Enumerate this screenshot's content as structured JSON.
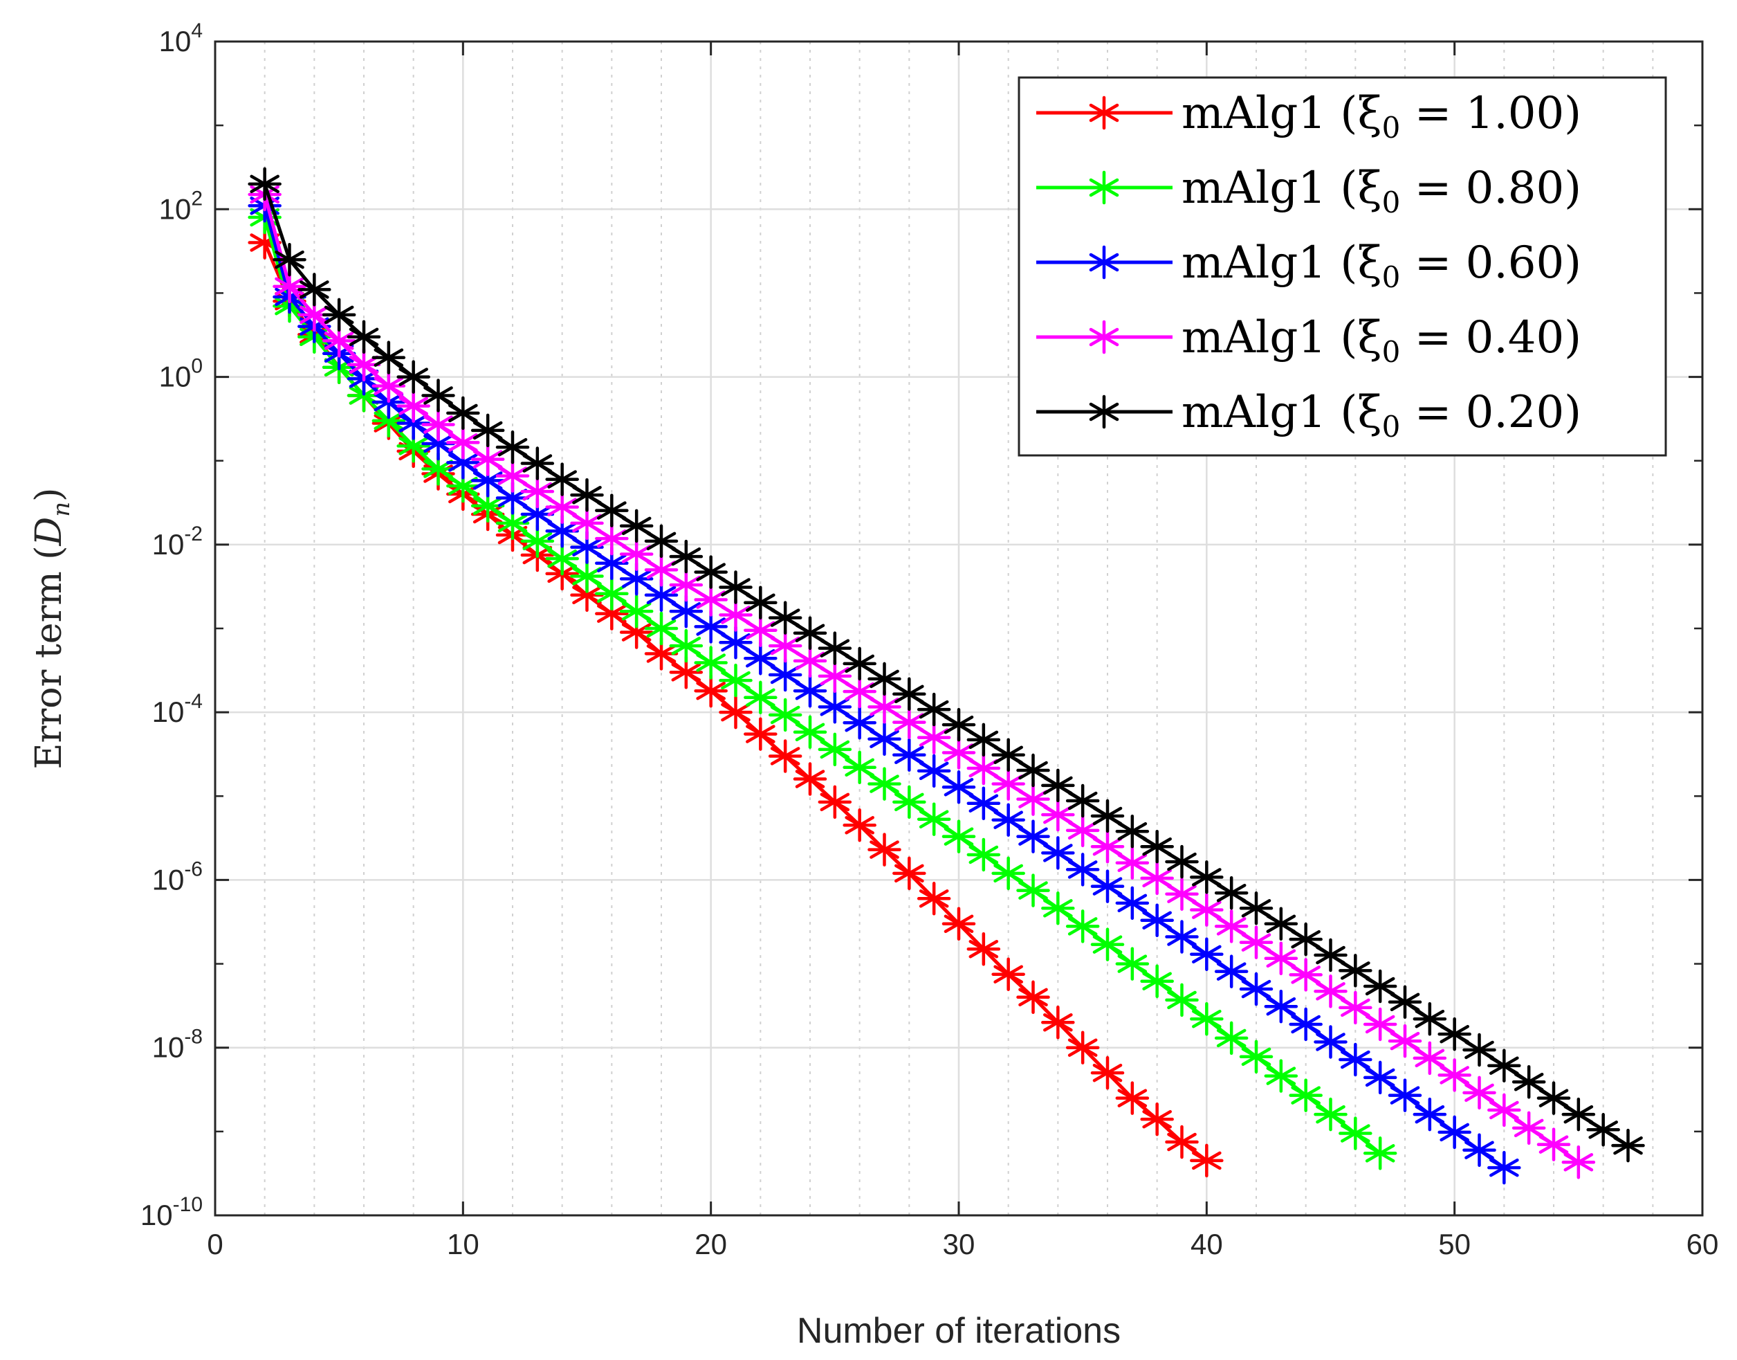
{
  "chart_data": {
    "type": "line",
    "title": "",
    "xlabel": "Number of iterations",
    "ylabel": "Error term (D_n)",
    "ylabel_text": "Error term",
    "ylabel_symbol_main": "D",
    "ylabel_symbol_sub": "n",
    "xlim": [
      0,
      60
    ],
    "ylim": [
      1e-10,
      10000.0
    ],
    "yscale": "log",
    "grid": true,
    "minor_grid_x": true,
    "legend_position": "top-right",
    "x_ticks": [
      "0",
      "10",
      "20",
      "30",
      "40",
      "50",
      "60"
    ],
    "y_ticks": [
      {
        "base": "10",
        "exp": "-10"
      },
      {
        "base": "10",
        "exp": "-8"
      },
      {
        "base": "10",
        "exp": "-6"
      },
      {
        "base": "10",
        "exp": "-4"
      },
      {
        "base": "10",
        "exp": "-2"
      },
      {
        "base": "10",
        "exp": "0"
      },
      {
        "base": "10",
        "exp": "2"
      },
      {
        "base": "10",
        "exp": "4"
      }
    ],
    "series": [
      {
        "name": "mAlg1 (ξ0 = 1.00)",
        "label_main": "mAlg1 (ξ",
        "label_sub": "0",
        "label_tail": " = 1.00)",
        "color": "#ff0000",
        "x": [
          2,
          3,
          4,
          5,
          6,
          7,
          8,
          9,
          10,
          11,
          12,
          13,
          14,
          15,
          16,
          17,
          18,
          19,
          20,
          21,
          22,
          23,
          24,
          25,
          26,
          27,
          28,
          29,
          30,
          31,
          32,
          33,
          34,
          35,
          36,
          37,
          38,
          39,
          40
        ],
        "y": [
          40,
          8,
          3.2,
          1.3,
          0.6,
          0.28,
          0.13,
          0.07,
          0.04,
          0.023,
          0.013,
          0.0075,
          0.0045,
          0.0025,
          0.0015,
          0.0009,
          0.0005,
          0.0003,
          0.00018,
          0.0001,
          5.5e-05,
          3e-05,
          1.6e-05,
          8.5e-06,
          4.5e-06,
          2.3e-06,
          1.2e-06,
          6e-07,
          3e-07,
          1.5e-07,
          7.5e-08,
          4e-08,
          2e-08,
          1e-08,
          5e-09,
          2.5e-09,
          1.4e-09,
          7.5e-10,
          4.5e-10
        ]
      },
      {
        "name": "mAlg1 (ξ0 = 0.80)",
        "label_main": "mAlg1 (ξ",
        "label_sub": "0",
        "label_tail": " = 0.80)",
        "color": "#00ff00",
        "x": [
          2,
          3,
          4,
          5,
          6,
          7,
          8,
          9,
          10,
          11,
          12,
          13,
          14,
          15,
          16,
          17,
          18,
          19,
          20,
          21,
          22,
          23,
          24,
          25,
          26,
          27,
          28,
          29,
          30,
          31,
          32,
          33,
          34,
          35,
          36,
          37,
          38,
          39,
          40,
          41,
          42,
          43,
          44,
          45,
          46,
          47
        ],
        "y": [
          80,
          7,
          3,
          1.3,
          0.6,
          0.3,
          0.15,
          0.08,
          0.05,
          0.029,
          0.018,
          0.011,
          0.0068,
          0.0042,
          0.0026,
          0.0016,
          0.001,
          0.00062,
          0.00039,
          0.00024,
          0.00015,
          9.3e-05,
          5.8e-05,
          3.6e-05,
          2.2e-05,
          1.4e-05,
          8.5e-06,
          5.3e-06,
          3.3e-06,
          2e-06,
          1.2e-06,
          7.5e-07,
          4.6e-07,
          2.8e-07,
          1.7e-07,
          1e-07,
          6.2e-08,
          3.7e-08,
          2.2e-08,
          1.3e-08,
          7.8e-09,
          4.6e-09,
          2.7e-09,
          1.6e-09,
          9.5e-10,
          5.5e-10
        ]
      },
      {
        "name": "mAlg1 (ξ0 = 0.60)",
        "label_main": "mAlg1 (ξ",
        "label_sub": "0",
        "label_tail": " = 0.60)",
        "color": "#0000ff",
        "x": [
          2,
          3,
          4,
          5,
          6,
          7,
          8,
          9,
          10,
          11,
          12,
          13,
          14,
          15,
          16,
          17,
          18,
          19,
          20,
          21,
          22,
          23,
          24,
          25,
          26,
          27,
          28,
          29,
          30,
          31,
          32,
          33,
          34,
          35,
          36,
          37,
          38,
          39,
          40,
          41,
          42,
          43,
          44,
          45,
          46,
          47,
          48,
          49,
          50,
          51,
          52
        ],
        "y": [
          110,
          9,
          4,
          1.9,
          0.95,
          0.5,
          0.28,
          0.16,
          0.095,
          0.058,
          0.036,
          0.023,
          0.0145,
          0.0093,
          0.006,
          0.0039,
          0.0025,
          0.0016,
          0.00105,
          0.00068,
          0.00044,
          0.00028,
          0.00018,
          0.000116,
          7.5e-05,
          4.8e-05,
          3.1e-05,
          2e-05,
          1.28e-05,
          8.2e-06,
          5.2e-06,
          3.3e-06,
          2.1e-06,
          1.33e-06,
          8.4e-07,
          5.3e-07,
          3.3e-07,
          2.1e-07,
          1.3e-07,
          8.1e-08,
          5e-08,
          3.1e-08,
          1.9e-08,
          1.17e-08,
          7.2e-09,
          4.4e-09,
          2.7e-09,
          1.6e-09,
          9.8e-10,
          6e-10,
          3.7e-10
        ]
      },
      {
        "name": "mAlg1 (ξ0 = 0.40)",
        "label_main": "mAlg1 (ξ",
        "label_sub": "0",
        "label_tail": " = 0.40)",
        "color": "#ff00ff",
        "x": [
          2,
          3,
          4,
          5,
          6,
          7,
          8,
          9,
          10,
          11,
          12,
          13,
          14,
          15,
          16,
          17,
          18,
          19,
          20,
          21,
          22,
          23,
          24,
          25,
          26,
          27,
          28,
          29,
          30,
          31,
          32,
          33,
          34,
          35,
          36,
          37,
          38,
          39,
          40,
          41,
          42,
          43,
          44,
          45,
          46,
          47,
          48,
          49,
          50,
          51,
          52,
          53,
          54,
          55
        ],
        "y": [
          150,
          12,
          5.5,
          2.7,
          1.4,
          0.78,
          0.45,
          0.27,
          0.165,
          0.104,
          0.066,
          0.043,
          0.028,
          0.018,
          0.0118,
          0.0077,
          0.005,
          0.0033,
          0.0022,
          0.00145,
          0.00095,
          0.00062,
          0.00041,
          0.00027,
          0.000177,
          0.000116,
          7.6e-05,
          5e-05,
          3.3e-05,
          2.15e-05,
          1.4e-05,
          9.2e-06,
          6e-06,
          3.9e-06,
          2.5e-06,
          1.6e-06,
          1.05e-06,
          6.8e-07,
          4.4e-07,
          2.8e-07,
          1.8e-07,
          1.16e-07,
          7.4e-08,
          4.7e-08,
          3e-08,
          1.9e-08,
          1.2e-08,
          7.5e-09,
          4.7e-09,
          2.9e-09,
          1.8e-09,
          1.1e-09,
          7e-10,
          4.3e-10
        ]
      },
      {
        "name": "mAlg1 (ξ0 = 0.20)",
        "label_main": "mAlg1 (ξ",
        "label_sub": "0",
        "label_tail": " = 0.20)",
        "color": "#000000",
        "x": [
          2,
          3,
          4,
          5,
          6,
          7,
          8,
          9,
          10,
          11,
          12,
          13,
          14,
          15,
          16,
          17,
          18,
          19,
          20,
          21,
          22,
          23,
          24,
          25,
          26,
          27,
          28,
          29,
          30,
          31,
          32,
          33,
          34,
          35,
          36,
          37,
          38,
          39,
          40,
          41,
          42,
          43,
          44,
          45,
          46,
          47,
          48,
          49,
          50,
          51,
          52,
          53,
          54,
          55,
          56,
          57
        ],
        "y": [
          200,
          25,
          11,
          5.5,
          3,
          1.7,
          1,
          0.6,
          0.37,
          0.23,
          0.145,
          0.093,
          0.06,
          0.039,
          0.0255,
          0.0167,
          0.011,
          0.0072,
          0.0047,
          0.0031,
          0.00203,
          0.00134,
          0.00088,
          0.00058,
          0.00038,
          0.00025,
          0.000165,
          0.000108,
          7.1e-05,
          4.7e-05,
          3.1e-05,
          2.03e-05,
          1.34e-05,
          8.8e-06,
          5.8e-06,
          3.8e-06,
          2.5e-06,
          1.65e-06,
          1.08e-06,
          7e-07,
          4.6e-07,
          3e-07,
          1.96e-07,
          1.27e-07,
          8.3e-08,
          5.4e-08,
          3.5e-08,
          2.2e-08,
          1.45e-08,
          9.4e-09,
          6.1e-09,
          3.9e-09,
          2.5e-09,
          1.6e-09,
          1.05e-09,
          6.8e-10
        ]
      }
    ]
  }
}
